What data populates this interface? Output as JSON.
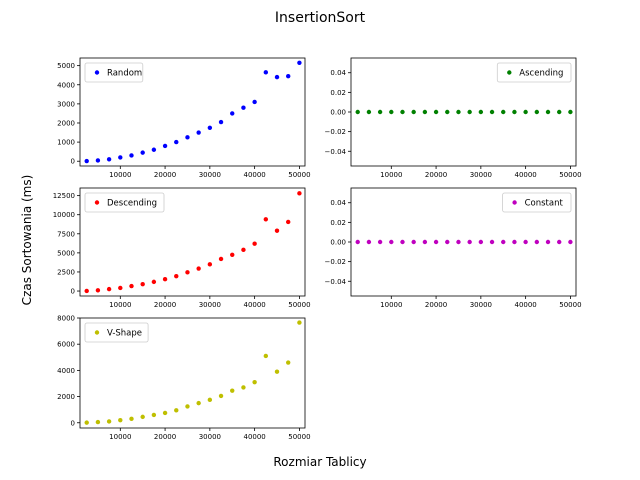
{
  "figure": {
    "title": "InsertionSort",
    "xlabel": "Rozmiar Tablicy",
    "ylabel": "Czas Sortowania (ms)"
  },
  "chart_data": [
    {
      "type": "scatter",
      "title": "",
      "legend": "Random",
      "legend_position": "top-left",
      "color": "#0000ff",
      "xlim": [
        1000,
        51250
      ],
      "ylim": [
        -250,
        5400
      ],
      "xticks": [
        10000,
        20000,
        30000,
        40000,
        50000
      ],
      "yticks": [
        0,
        1000,
        2000,
        3000,
        4000,
        5000
      ],
      "ytick_labels": [
        "0",
        "1000",
        "2000",
        "3000",
        "4000",
        "5000"
      ],
      "show_xtick_labels": true,
      "x": [
        2500,
        5000,
        7500,
        10000,
        12500,
        15000,
        17500,
        20000,
        22500,
        25000,
        27500,
        30000,
        32500,
        35000,
        37500,
        40000,
        42500,
        45000,
        47500,
        50000
      ],
      "y": [
        10,
        40,
        100,
        200,
        300,
        450,
        600,
        800,
        1000,
        1250,
        1500,
        1750,
        2050,
        2500,
        2800,
        3100,
        4650,
        4400,
        4450,
        5150
      ]
    },
    {
      "type": "scatter",
      "title": "",
      "legend": "Ascending",
      "legend_position": "top-right",
      "color": "#008000",
      "xlim": [
        1000,
        51250
      ],
      "ylim": [
        -0.055,
        0.055
      ],
      "xticks": [
        10000,
        20000,
        30000,
        40000,
        50000
      ],
      "yticks": [
        -0.04,
        -0.02,
        0,
        0.02,
        0.04
      ],
      "ytick_labels": [
        "−0.04",
        "−0.02",
        "0.00",
        "0.02",
        "0.04"
      ],
      "show_xtick_labels": true,
      "x": [
        2500,
        5000,
        7500,
        10000,
        12500,
        15000,
        17500,
        20000,
        22500,
        25000,
        27500,
        30000,
        32500,
        35000,
        37500,
        40000,
        42500,
        45000,
        47500,
        50000
      ],
      "y": [
        0,
        0,
        0,
        0,
        0,
        0,
        0,
        0,
        0,
        0,
        0,
        0,
        0,
        0,
        0,
        0,
        0,
        0,
        0,
        0
      ]
    },
    {
      "type": "scatter",
      "title": "",
      "legend": "Descending",
      "legend_position": "top-left",
      "color": "#ff0000",
      "xlim": [
        1000,
        51250
      ],
      "ylim": [
        -650,
        13500
      ],
      "xticks": [
        10000,
        20000,
        30000,
        40000,
        50000
      ],
      "yticks": [
        0,
        2500,
        5000,
        7500,
        10000,
        12500
      ],
      "ytick_labels": [
        "0",
        "2500",
        "5000",
        "7500",
        "10000",
        "12500"
      ],
      "show_xtick_labels": true,
      "x": [
        2500,
        5000,
        7500,
        10000,
        12500,
        15000,
        17500,
        20000,
        22500,
        25000,
        27500,
        30000,
        32500,
        35000,
        37500,
        40000,
        42500,
        45000,
        47500,
        50000
      ],
      "y": [
        10,
        100,
        250,
        400,
        650,
        900,
        1200,
        1550,
        1950,
        2450,
        2950,
        3500,
        4200,
        4750,
        5400,
        6200,
        9400,
        7900,
        9050,
        12800
      ]
    },
    {
      "type": "scatter",
      "title": "",
      "legend": "Constant",
      "legend_position": "top-right",
      "color": "#bf00bf",
      "xlim": [
        1000,
        51250
      ],
      "ylim": [
        -0.055,
        0.055
      ],
      "xticks": [
        10000,
        20000,
        30000,
        40000,
        50000
      ],
      "yticks": [
        -0.04,
        -0.02,
        0,
        0.02,
        0.04
      ],
      "ytick_labels": [
        "−0.04",
        "−0.02",
        "0.00",
        "0.02",
        "0.04"
      ],
      "show_xtick_labels": true,
      "x": [
        2500,
        5000,
        7500,
        10000,
        12500,
        15000,
        17500,
        20000,
        22500,
        25000,
        27500,
        30000,
        32500,
        35000,
        37500,
        40000,
        42500,
        45000,
        47500,
        50000
      ],
      "y": [
        0,
        0,
        0,
        0,
        0,
        0,
        0,
        0,
        0,
        0,
        0,
        0,
        0,
        0,
        0,
        0,
        0,
        0,
        0,
        0
      ]
    },
    {
      "type": "scatter",
      "title": "",
      "legend": "V-Shape",
      "legend_position": "top-left",
      "color": "#bfbf00",
      "xlim": [
        1000,
        51250
      ],
      "ylim": [
        -400,
        8000
      ],
      "xticks": [
        10000,
        20000,
        30000,
        40000,
        50000
      ],
      "yticks": [
        0,
        2000,
        4000,
        6000,
        8000
      ],
      "ytick_labels": [
        "0",
        "2000",
        "4000",
        "6000",
        "8000"
      ],
      "show_xtick_labels": true,
      "x": [
        2500,
        5000,
        7500,
        10000,
        12500,
        15000,
        17500,
        20000,
        22500,
        25000,
        27500,
        30000,
        32500,
        35000,
        37500,
        40000,
        42500,
        45000,
        47500,
        50000
      ],
      "y": [
        10,
        50,
        100,
        200,
        300,
        450,
        600,
        750,
        950,
        1250,
        1500,
        1750,
        2050,
        2450,
        2700,
        3100,
        5100,
        3900,
        4600,
        7650
      ]
    }
  ]
}
